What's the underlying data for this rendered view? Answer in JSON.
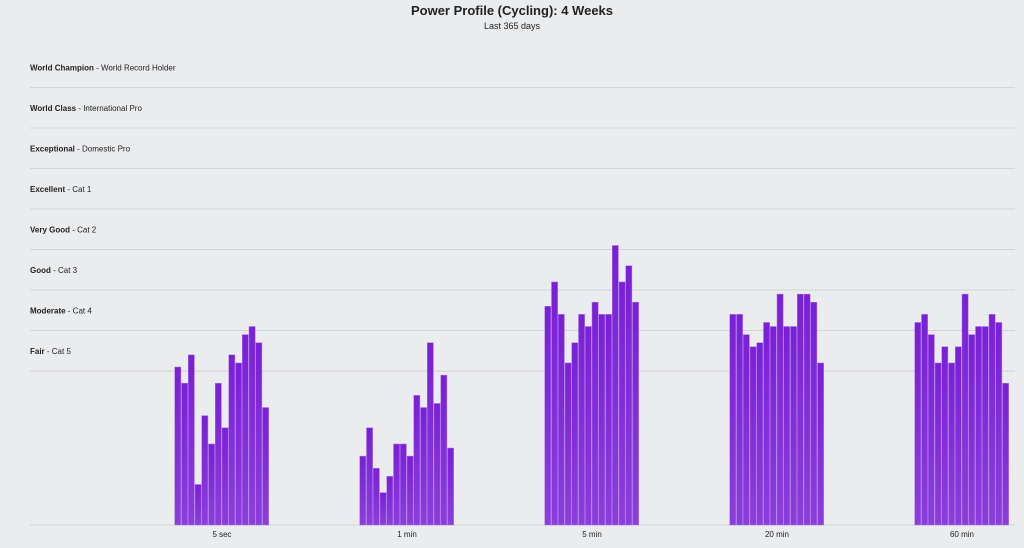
{
  "chart_data": {
    "type": "grouped-bar",
    "title": "Power Profile (Cycling): 4 Weeks",
    "subtitle": "Last 365 days",
    "categories": [
      "5 sec",
      "1 min",
      "5 min",
      "20 min",
      "60 min"
    ],
    "values": [
      [
        3.9,
        3.5,
        4.2,
        1.0,
        2.7,
        2.0,
        3.5,
        2.4,
        4.2,
        4.0,
        4.7,
        4.9,
        4.5,
        2.9
      ],
      [
        1.7,
        2.4,
        1.4,
        0.8,
        1.2,
        2.0,
        2.0,
        1.7,
        3.2,
        2.9,
        4.5,
        3.0,
        3.7,
        1.9
      ],
      [
        5.4,
        6.0,
        5.2,
        4.0,
        4.5,
        5.2,
        4.9,
        5.5,
        5.2,
        5.2,
        6.9,
        6.0,
        6.4,
        5.5
      ],
      [
        5.2,
        5.2,
        4.7,
        4.4,
        4.5,
        5.0,
        4.9,
        5.7,
        4.9,
        4.9,
        5.7,
        5.7,
        5.5,
        4.0
      ],
      [
        5.0,
        5.2,
        4.7,
        4.0,
        4.4,
        4.0,
        4.4,
        5.7,
        4.7,
        4.9,
        4.9,
        5.2,
        5.0,
        3.5
      ]
    ],
    "color": "#7a1fd6",
    "ylim": [
      0,
      11.8
    ],
    "levels": [
      {
        "name": "World Champion",
        "desc": "World Record Holder",
        "value": 10.8
      },
      {
        "name": "World Class",
        "desc": "International Pro",
        "value": 9.8
      },
      {
        "name": "Exceptional",
        "desc": "Domestic Pro",
        "value": 8.8
      },
      {
        "name": "Excellent",
        "desc": "Cat 1",
        "value": 7.8
      },
      {
        "name": "Very Good",
        "desc": "Cat 2",
        "value": 6.8
      },
      {
        "name": "Good",
        "desc": "Cat 3",
        "value": 5.8
      },
      {
        "name": "Moderate",
        "desc": "Cat 4",
        "value": 4.8
      },
      {
        "name": "Fair",
        "desc": "Cat 5",
        "value": 3.8
      }
    ]
  }
}
